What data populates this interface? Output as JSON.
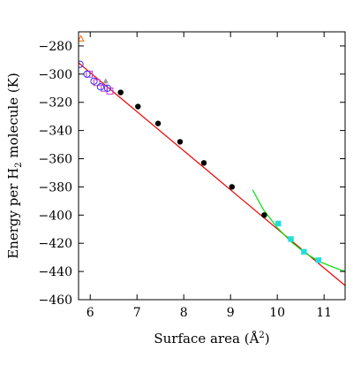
{
  "chart_data": {
    "type": "scatter",
    "xlabel": "Surface area (Å²)",
    "xlabel_parts": {
      "main": "Surface area (",
      "unit": "Å",
      "exponent": "2",
      "close": ")"
    },
    "ylabel": "Energy per H₂ molecule (K)",
    "ylabel_parts": {
      "main": "Energy per H",
      "subscript": "2",
      "rest": " molecule (K)"
    },
    "xlim": [
      5.75,
      11.45
    ],
    "ylim": [
      -460,
      -270
    ],
    "x_ticks": [
      6,
      7,
      8,
      9,
      10,
      11
    ],
    "x_tick_labels": [
      "6",
      "7",
      "8",
      "9",
      "10",
      "11"
    ],
    "y_ticks": [
      -280,
      -300,
      -320,
      -340,
      -360,
      -380,
      -400,
      -420,
      -440,
      -460
    ],
    "y_tick_labels": [
      "−280",
      "−300",
      "−320",
      "−340",
      "−360",
      "−380",
      "−400",
      "−420",
      "−440",
      "−460"
    ],
    "grid": false,
    "legend": "none",
    "series": [
      {
        "marker": "filled-circle",
        "color": "#000000",
        "points": [
          [
            6.65,
            -313
          ],
          [
            7.02,
            -323
          ],
          [
            7.45,
            -335
          ],
          [
            7.92,
            -348
          ],
          [
            8.43,
            -363
          ],
          [
            9.03,
            -380
          ],
          [
            9.72,
            -400
          ]
        ]
      },
      {
        "marker": "filled-square",
        "color": "#22dddd",
        "points": [
          [
            10.02,
            -406
          ],
          [
            10.29,
            -417
          ],
          [
            10.57,
            -426
          ],
          [
            10.88,
            -432
          ]
        ]
      },
      {
        "marker": "open-square",
        "color": "#cc33cc",
        "points": [
          [
            5.98,
            -300
          ],
          [
            6.14,
            -306
          ],
          [
            6.3,
            -310
          ],
          [
            6.42,
            -312
          ]
        ]
      },
      {
        "marker": "open-circle",
        "color": "#3333ff",
        "points": [
          [
            5.78,
            -293
          ],
          [
            5.93,
            -300
          ],
          [
            6.08,
            -305
          ],
          [
            6.22,
            -309
          ],
          [
            6.37,
            -310
          ]
        ]
      },
      {
        "marker": "filled-triangle",
        "color": "#999999",
        "points": [
          [
            6.33,
            -305
          ]
        ]
      },
      {
        "marker": "open-triangle",
        "color": "#ff6600",
        "points": [
          [
            5.8,
            -275
          ]
        ]
      }
    ],
    "fit_lines": [
      {
        "style": "straight",
        "color": "#ee0000",
        "points": [
          [
            5.75,
            -292
          ],
          [
            11.45,
            -450
          ]
        ]
      },
      {
        "style": "curve",
        "color": "#00dd00",
        "points": [
          [
            9.47,
            -382
          ],
          [
            9.7,
            -396
          ],
          [
            10.0,
            -409
          ],
          [
            10.3,
            -419
          ],
          [
            10.6,
            -427
          ],
          [
            10.9,
            -433
          ],
          [
            11.2,
            -437
          ],
          [
            11.45,
            -440
          ]
        ]
      }
    ]
  }
}
